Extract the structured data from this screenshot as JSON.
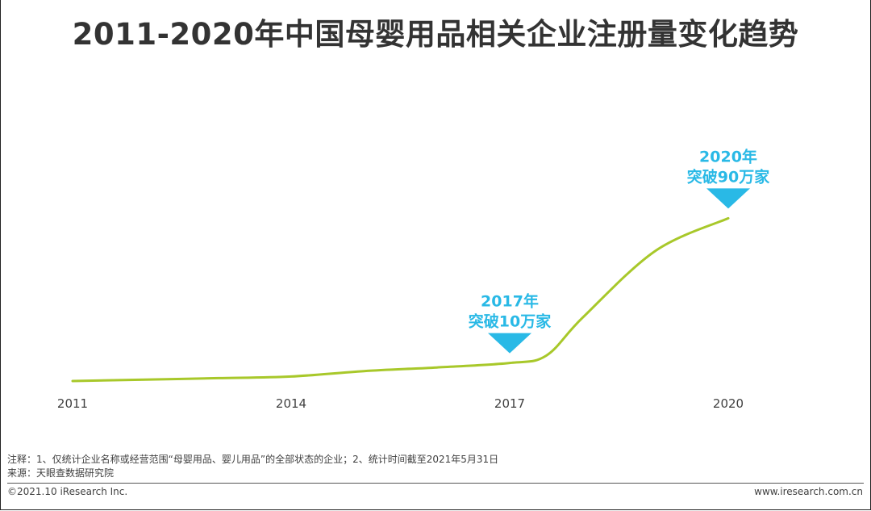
{
  "title": "2011-2020年中国母婴用品相关企业注册量变化趋势",
  "chart_data": {
    "type": "line",
    "title": "2011-2020年中国母婴用品相关企业注册量变化趋势",
    "x_ticks": [
      "2011",
      "2014",
      "2017",
      "2020"
    ],
    "xlim": [
      2011,
      2020
    ],
    "ylim": [
      0,
      100
    ],
    "unit": "万家",
    "grid": false,
    "legend": "none",
    "series": [
      {
        "color": "#a8c82a",
        "points": [
          {
            "x": 2011,
            "y": 0
          },
          {
            "x": 2012,
            "y": 0.8
          },
          {
            "x": 2013,
            "y": 1.6
          },
          {
            "x": 2014,
            "y": 2.5
          },
          {
            "x": 2015,
            "y": 5.5
          },
          {
            "x": 2016,
            "y": 7.5
          },
          {
            "x": 2017,
            "y": 10
          },
          {
            "x": 2017.5,
            "y": 14
          },
          {
            "x": 2018,
            "y": 35
          },
          {
            "x": 2019,
            "y": 72
          },
          {
            "x": 2020,
            "y": 90
          }
        ]
      }
    ],
    "annotations": [
      {
        "x": 2017,
        "y": 10,
        "line1": "2017年",
        "line2": "突破10万家",
        "color": "#29b9e6"
      },
      {
        "x": 2020,
        "y": 90,
        "line1": "2020年",
        "line2": "突破90万家",
        "color": "#29b9e6"
      }
    ]
  },
  "notes": {
    "note_line": "注释：1、仅统计企业名称或经营范围“母婴用品、婴儿用品”的全部状态的企业；2、统计时间截至2021年5月31日",
    "source_line": "来源：天眼查数据研究院"
  },
  "footer": {
    "copyright": "©2021.10 iResearch Inc.",
    "website": "www.iresearch.com.cn"
  }
}
